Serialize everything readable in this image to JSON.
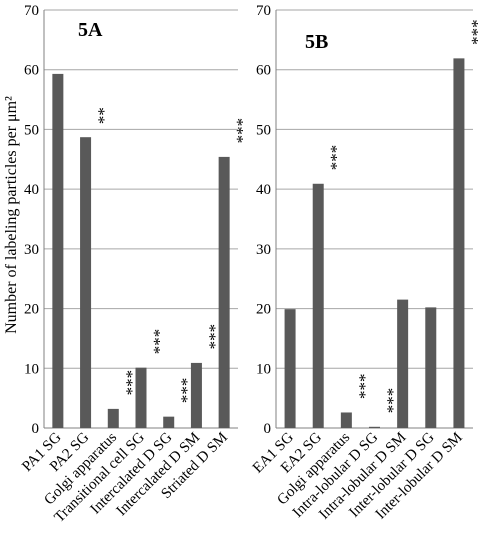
{
  "ylabel": "Number of labeling particles per μm²",
  "chart_data": [
    {
      "type": "bar",
      "title": "5A",
      "ylabel": "Number of labeling particles per μm²",
      "ylim": [
        0,
        70
      ],
      "yticks": [
        0,
        10,
        20,
        30,
        40,
        50,
        60,
        70
      ],
      "grid": true,
      "categories": [
        "PA1 SG",
        "PA2 SG",
        "Golgi apparatus",
        "Transitional cell SG",
        "Intercalated D SG",
        "Intercalated D SM",
        "Striated D SM"
      ],
      "values": [
        59.3,
        48.7,
        3.2,
        10.1,
        1.9,
        10.9,
        45.4
      ],
      "significance": [
        "",
        "**",
        "***",
        "***",
        "***",
        "***",
        "***"
      ],
      "bar_color": "#595959"
    },
    {
      "type": "bar",
      "title": "5B",
      "ylim": [
        0,
        70
      ],
      "yticks": [
        0,
        10,
        20,
        30,
        40,
        50,
        60,
        70
      ],
      "grid": true,
      "categories": [
        "EA1 SG",
        "EA2 SG",
        "Golgi apparatus",
        "Intra-lobular D SG",
        "Intra-lobular D SM",
        "Inter-lobular D SG",
        "Inter-lobular D SM"
      ],
      "values": [
        19.9,
        40.9,
        2.6,
        0.2,
        21.5,
        20.2,
        61.9
      ],
      "significance": [
        "",
        "***",
        "***",
        "***",
        "",
        "",
        "***"
      ],
      "bar_color": "#595959"
    }
  ]
}
